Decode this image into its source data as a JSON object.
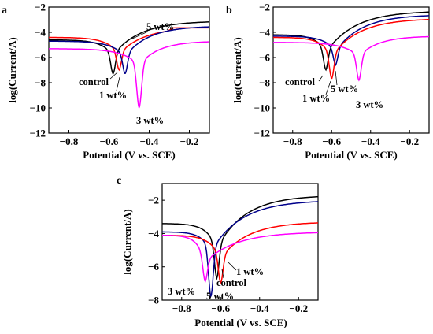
{
  "chart_data": [
    {
      "type": "line",
      "panel_label": "a",
      "xlabel": "Potential (V vs. SCE)",
      "ylabel": "log(Current/A)",
      "xlim": [
        -0.9,
        -0.1
      ],
      "ylim": [
        -12,
        -2
      ],
      "xticks": [
        "-0.8",
        "-0.6",
        "-0.4",
        "-0.2"
      ],
      "yticks": [
        "-2",
        "-4",
        "-6",
        "-8",
        "-10",
        "-12"
      ],
      "series": [
        {
          "name": "control",
          "color": "#000000",
          "ecorr": -0.58,
          "icorr": -5.8,
          "depth": -7.3,
          "left": -4.6,
          "right": -3.1,
          "ka": 1.1,
          "kc": 1.3
        },
        {
          "name": "1 wt%",
          "color": "#ff0000",
          "ecorr": -0.55,
          "icorr": -5.7,
          "depth": -7.0,
          "left": -4.4,
          "right": -3.6,
          "ka": 1.2,
          "kc": 1.4,
          "step": true
        },
        {
          "name": "5 wt%",
          "color": "#00008b",
          "ecorr": -0.52,
          "icorr": -5.9,
          "depth": -7.3,
          "left": -4.7,
          "right": -3.5,
          "ka": 1.0,
          "kc": 1.2
        },
        {
          "name": "3 wt%",
          "color": "#ff00ff",
          "ecorr": -0.45,
          "icorr": -6.6,
          "depth": -10.0,
          "left": -5.3,
          "right": -4.7,
          "ka": 0.9,
          "kc": 1.0
        }
      ],
      "annotations": [
        "5 wt%",
        "control",
        "1 wt%",
        "3 wt%"
      ]
    },
    {
      "type": "line",
      "panel_label": "b",
      "xlabel": "Potential (V vs. SCE)",
      "ylabel": "log(Current/A)",
      "xlim": [
        -0.9,
        -0.1
      ],
      "ylim": [
        -12,
        -2
      ],
      "xticks": [
        "-0.8",
        "-0.6",
        "-0.4",
        "-0.2"
      ],
      "yticks": [
        "-2",
        "-4",
        "-6",
        "-8",
        "-10",
        "-12"
      ],
      "series": [
        {
          "name": "control",
          "color": "#000000",
          "ecorr": -0.63,
          "icorr": -5.6,
          "depth": -7.0,
          "left": -4.2,
          "right": -2.3,
          "ka": 1.0,
          "kc": 1.2
        },
        {
          "name": "5 wt%",
          "color": "#00008b",
          "ecorr": -0.58,
          "icorr": -5.5,
          "depth": -6.6,
          "left": -4.3,
          "right": -2.6,
          "ka": 1.0,
          "kc": 1.2
        },
        {
          "name": "1 wt%",
          "color": "#ff0000",
          "ecorr": -0.6,
          "icorr": -5.9,
          "depth": -7.7,
          "left": -4.4,
          "right": -2.9,
          "ka": 1.1,
          "kc": 1.2
        },
        {
          "name": "3 wt%",
          "color": "#ff00ff",
          "ecorr": -0.46,
          "icorr": -5.9,
          "depth": -7.8,
          "left": -4.8,
          "right": -4.3,
          "ka": 1.0,
          "kc": 1.1
        }
      ],
      "annotations": [
        "control",
        "5 wt%",
        "1 wt%",
        "3 wt%"
      ]
    },
    {
      "type": "line",
      "panel_label": "c",
      "xlabel": "Potential (V vs. SCE)",
      "ylabel": "log(Current/A)",
      "xlim": [
        -0.9,
        -0.1
      ],
      "ylim": [
        -8,
        -1
      ],
      "xticks": [
        "-0.8",
        "-0.6",
        "-0.4",
        "-0.2"
      ],
      "yticks": [
        "-2",
        "-4",
        "-6",
        "-8"
      ],
      "series": [
        {
          "name": "control",
          "color": "#000000",
          "ecorr": -0.62,
          "icorr": -4.9,
          "depth": -6.7,
          "left": -3.4,
          "right": -1.7,
          "ka": 1.1,
          "kc": 1.3
        },
        {
          "name": "5 wt%",
          "color": "#00008b",
          "ecorr": -0.65,
          "icorr": -5.1,
          "depth": -7.8,
          "left": -3.9,
          "right": -2.0,
          "ka": 1.1,
          "kc": 1.3
        },
        {
          "name": "1 wt%",
          "color": "#ff0000",
          "ecorr": -0.6,
          "icorr": -5.5,
          "depth": -7.0,
          "left": -4.1,
          "right": -3.3,
          "ka": 1.0,
          "kc": 1.3
        },
        {
          "name": "3 wt%",
          "color": "#ff00ff",
          "ecorr": -0.68,
          "icorr": -5.7,
          "depth": -6.9,
          "left": -4.1,
          "right": -3.9,
          "ka": 0.9,
          "kc": 1.0
        }
      ],
      "annotations": [
        "1 wt%",
        "control",
        "3 wt%",
        "5 wt%"
      ]
    }
  ]
}
